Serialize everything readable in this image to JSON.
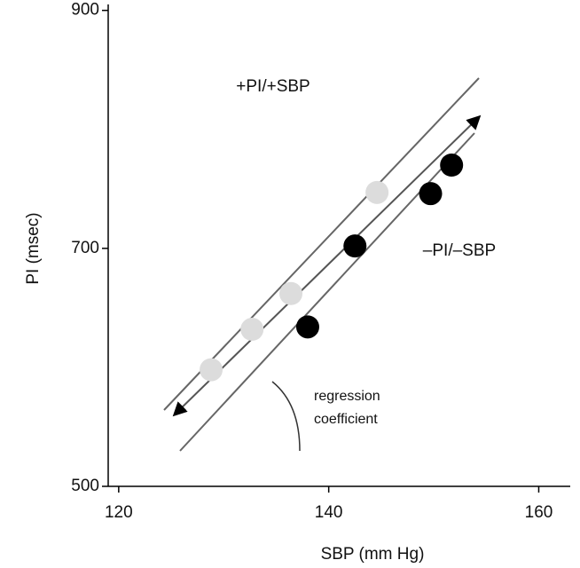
{
  "chart_data": {
    "type": "scatter",
    "xlabel": "SBP (mm Hg)",
    "ylabel": "PI (msec)",
    "xlim": [
      119,
      163
    ],
    "ylim": [
      500,
      905
    ],
    "xticks": [
      120,
      140,
      160
    ],
    "yticks": [
      500,
      700,
      900
    ],
    "series": [
      {
        "color": "#dcdcdc",
        "x": [
          128.8,
          132.7,
          136.4,
          144.6
        ],
        "values": [
          598,
          632,
          662,
          747
        ]
      },
      {
        "color": "#000000",
        "x": [
          138.0,
          142.5,
          149.7,
          151.7
        ],
        "values": [
          634,
          702,
          746,
          770
        ]
      }
    ],
    "annotations": [
      "+PI/+SBP",
      "–PI/–SBP",
      "regression",
      "coefficient"
    ]
  }
}
